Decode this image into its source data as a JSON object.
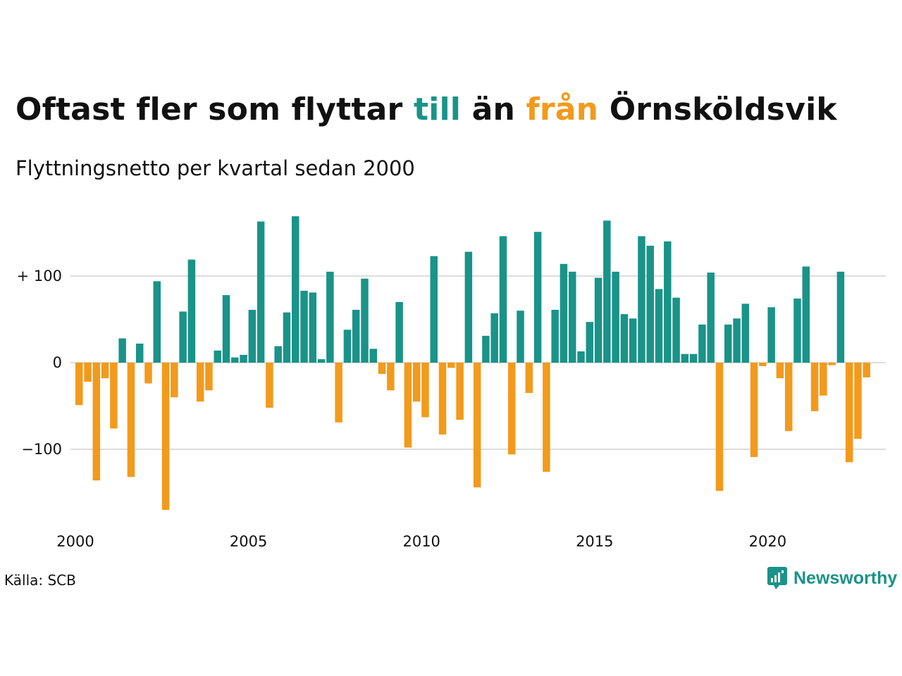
{
  "header": {
    "title_part1": "Oftast fler som flyttar ",
    "title_till": "till",
    "title_mid": " än ",
    "title_fran": "från",
    "title_part2": " Örnsköldsvik",
    "subtitle": "Flyttningsnetto per kvartal sedan 2000"
  },
  "footer": {
    "source": "Källa: SCB",
    "brand": "Newsworthy"
  },
  "colors": {
    "positive": "#1a9388",
    "negative": "#f29a1c",
    "grid": "#dddddd"
  },
  "chart_data": {
    "type": "bar",
    "x_start_year": 2000,
    "quarters_per_year": 4,
    "x_tick_labels": [
      "2000",
      "2005",
      "2010",
      "2015",
      "2020"
    ],
    "y_ticks": [
      {
        "value": 100,
        "label": "+ 100"
      },
      {
        "value": 0,
        "label": "0"
      },
      {
        "value": -100,
        "label": "−100"
      }
    ],
    "ylim": [
      -170,
      170
    ],
    "grid": true,
    "values": [
      -49,
      -22,
      -136,
      -18,
      -76,
      28,
      -132,
      22,
      -24,
      94,
      -170,
      -40,
      59,
      119,
      -45,
      -32,
      14,
      78,
      6,
      9,
      61,
      163,
      -52,
      19,
      58,
      169,
      83,
      81,
      4,
      105,
      -69,
      38,
      61,
      97,
      16,
      -13,
      -32,
      70,
      -98,
      -45,
      -63,
      123,
      -83,
      -6,
      -66,
      128,
      -144,
      31,
      57,
      146,
      -106,
      60,
      -35,
      151,
      -126,
      61,
      114,
      105,
      13,
      47,
      98,
      164,
      105,
      56,
      51,
      146,
      135,
      85,
      140,
      75,
      10,
      10,
      44,
      104,
      -148,
      44,
      51,
      68,
      -109,
      -4,
      64,
      -18,
      -79,
      74,
      111,
      -56,
      -38,
      -3,
      105,
      -115,
      -88,
      -17
    ]
  }
}
